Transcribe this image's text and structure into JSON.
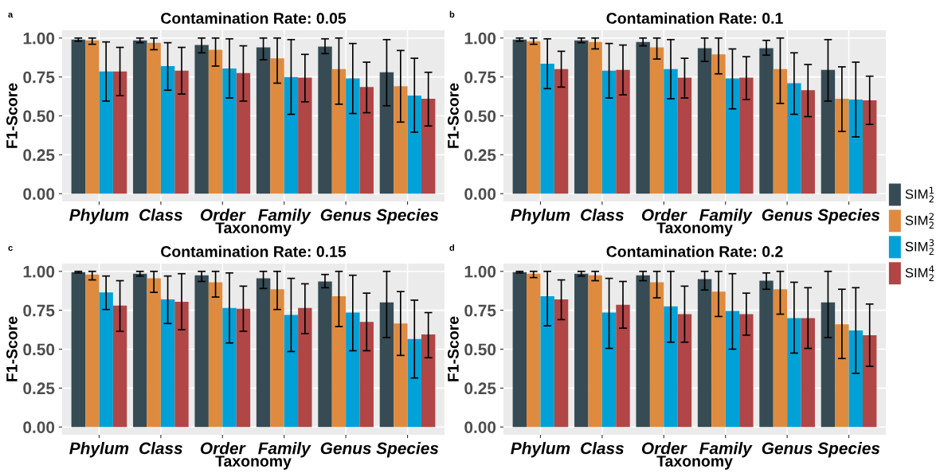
{
  "chart_data": [
    {
      "type": "bar",
      "title": "Contamination Rate: 0.05",
      "xlabel": "Taxonomy",
      "ylabel": "F1-Score",
      "annotations": [
        "a"
      ],
      "categories": [
        "Phylum",
        "Class",
        "Order",
        "Family",
        "Genus",
        "Species"
      ],
      "ylim": [
        -0.05,
        1.05
      ],
      "yticks": [
        {
          "value": 0,
          "label": "0.00"
        },
        {
          "value": 0.25,
          "label": "0.25"
        },
        {
          "value": 0.5,
          "label": "0.50"
        },
        {
          "value": 0.75,
          "label": "0.75"
        },
        {
          "value": 1,
          "label": "1.00"
        }
      ],
      "grid": true,
      "series": [
        {
          "color": "#364b54",
          "values": [
            0.99,
            0.985,
            0.955,
            0.94,
            0.945,
            0.78
          ],
          "errors": [
            [
              0.98,
              1.0
            ],
            [
              0.97,
              1.0
            ],
            [
              0.905,
              1.0
            ],
            [
              0.86,
              1.0
            ],
            [
              0.9,
              0.995
            ],
            [
              0.565,
              0.99
            ]
          ]
        },
        {
          "color": "#de8b40",
          "values": [
            0.985,
            0.97,
            0.925,
            0.87,
            0.8,
            0.69
          ],
          "errors": [
            [
              0.96,
              1.0
            ],
            [
              0.925,
              1.0
            ],
            [
              0.82,
              1.0
            ],
            [
              0.71,
              1.0
            ],
            [
              0.575,
              1.0
            ],
            [
              0.46,
              0.92
            ]
          ]
        },
        {
          "color": "#00a1d6",
          "values": [
            0.785,
            0.82,
            0.805,
            0.75,
            0.74,
            0.63
          ],
          "errors": [
            [
              0.595,
              0.975
            ],
            [
              0.665,
              0.97
            ],
            [
              0.615,
              0.995
            ],
            [
              0.51,
              0.99
            ],
            [
              0.515,
              0.965
            ],
            [
              0.395,
              0.87
            ]
          ]
        },
        {
          "color": "#b04646",
          "values": [
            0.785,
            0.79,
            0.775,
            0.745,
            0.685,
            0.61
          ],
          "errors": [
            [
              0.63,
              0.94
            ],
            [
              0.64,
              0.94
            ],
            [
              0.595,
              0.95
            ],
            [
              0.59,
              0.895
            ],
            [
              0.52,
              0.845
            ],
            [
              0.435,
              0.78
            ]
          ]
        }
      ]
    },
    {
      "type": "bar",
      "title": "Contamination Rate: 0.1",
      "xlabel": "Taxonomy",
      "ylabel": "F1-Score",
      "annotations": [
        "b"
      ],
      "legend": "right",
      "categories": [
        "Phylum",
        "Class",
        "Order",
        "Family",
        "Genus",
        "Species"
      ],
      "ylim": [
        -0.05,
        1.05
      ],
      "yticks": [
        {
          "value": 0,
          "label": "0.00"
        },
        {
          "value": 0.25,
          "label": "0.25"
        },
        {
          "value": 0.5,
          "label": "0.50"
        },
        {
          "value": 0.75,
          "label": "0.75"
        },
        {
          "value": 1,
          "label": "1.00"
        }
      ],
      "grid": true,
      "series": [
        {
          "name": "SIM$^{1}$$_{2}$",
          "color": "#364b54",
          "values": [
            0.99,
            0.985,
            0.975,
            0.935,
            0.935,
            0.795
          ],
          "errors": [
            [
              0.98,
              1.0
            ],
            [
              0.97,
              1.0
            ],
            [
              0.95,
              1.0
            ],
            [
              0.85,
              1.0
            ],
            [
              0.89,
              0.985
            ],
            [
              0.595,
              0.99
            ]
          ]
        },
        {
          "name": "SIM$^{2}$$_{2}$",
          "color": "#de8b40",
          "values": [
            0.98,
            0.975,
            0.94,
            0.895,
            0.8,
            0.61
          ],
          "errors": [
            [
              0.96,
              1.0
            ],
            [
              0.93,
              1.0
            ],
            [
              0.865,
              1.0
            ],
            [
              0.77,
              1.0
            ],
            [
              0.58,
              1.0
            ],
            [
              0.4,
              0.815
            ]
          ]
        },
        {
          "name": "SIM$^{3}$$_{2}$",
          "color": "#00a1d6",
          "values": [
            0.835,
            0.79,
            0.8,
            0.74,
            0.71,
            0.605
          ],
          "errors": [
            [
              0.675,
              0.995
            ],
            [
              0.615,
              0.965
            ],
            [
              0.61,
              0.99
            ],
            [
              0.545,
              0.93
            ],
            [
              0.51,
              0.905
            ],
            [
              0.365,
              0.845
            ]
          ]
        },
        {
          "name": "SIM$^{4}$$_{2}$",
          "color": "#b04646",
          "values": [
            0.8,
            0.795,
            0.745,
            0.745,
            0.665,
            0.6
          ],
          "errors": [
            [
              0.685,
              0.915
            ],
            [
              0.635,
              0.955
            ],
            [
              0.615,
              0.87
            ],
            [
              0.605,
              0.88
            ],
            [
              0.495,
              0.83
            ],
            [
              0.445,
              0.755
            ]
          ]
        }
      ]
    },
    {
      "type": "bar",
      "title": "Contamination Rate: 0.15",
      "xlabel": "Taxonomy",
      "ylabel": "F1-Score",
      "annotations": [
        "c"
      ],
      "categories": [
        "Phylum",
        "Class",
        "Order",
        "Family",
        "Genus",
        "Species"
      ],
      "ylim": [
        -0.05,
        1.05
      ],
      "yticks": [
        {
          "value": 0,
          "label": "0.00"
        },
        {
          "value": 0.25,
          "label": "0.25"
        },
        {
          "value": 0.5,
          "label": "0.50"
        },
        {
          "value": 0.75,
          "label": "0.75"
        },
        {
          "value": 1,
          "label": "1.00"
        }
      ],
      "grid": true,
      "series": [
        {
          "color": "#364b54",
          "values": [
            0.995,
            0.985,
            0.975,
            0.955,
            0.935,
            0.8
          ],
          "errors": [
            [
              0.99,
              1.0
            ],
            [
              0.97,
              1.0
            ],
            [
              0.935,
              1.0
            ],
            [
              0.89,
              1.0
            ],
            [
              0.895,
              0.98
            ],
            [
              0.575,
              1.0
            ]
          ]
        },
        {
          "color": "#de8b40",
          "values": [
            0.98,
            0.955,
            0.93,
            0.885,
            0.84,
            0.665
          ],
          "errors": [
            [
              0.945,
              1.0
            ],
            [
              0.865,
              1.0
            ],
            [
              0.835,
              1.0
            ],
            [
              0.755,
              1.0
            ],
            [
              0.645,
              1.0
            ],
            [
              0.46,
              0.87
            ]
          ]
        },
        {
          "color": "#00a1d6",
          "values": [
            0.865,
            0.82,
            0.765,
            0.72,
            0.735,
            0.565
          ],
          "errors": [
            [
              0.755,
              0.97
            ],
            [
              0.665,
              0.97
            ],
            [
              0.54,
              0.99
            ],
            [
              0.485,
              0.955
            ],
            [
              0.49,
              0.975
            ],
            [
              0.315,
              0.815
            ]
          ]
        },
        {
          "color": "#b04646",
          "values": [
            0.78,
            0.805,
            0.76,
            0.765,
            0.675,
            0.595
          ],
          "errors": [
            [
              0.615,
              0.94
            ],
            [
              0.625,
              0.985
            ],
            [
              0.615,
              0.905
            ],
            [
              0.6,
              0.92
            ],
            [
              0.49,
              0.86
            ],
            [
              0.445,
              0.735
            ]
          ]
        }
      ]
    },
    {
      "type": "bar",
      "title": "Contamination Rate: 0.2",
      "xlabel": "Taxonomy",
      "ylabel": "F1-Score",
      "annotations": [
        "d"
      ],
      "categories": [
        "Phylum",
        "Class",
        "Order",
        "Family",
        "Genus",
        "Species"
      ],
      "ylim": [
        -0.05,
        1.05
      ],
      "yticks": [
        {
          "value": 0,
          "label": "0.00"
        },
        {
          "value": 0.25,
          "label": "0.25"
        },
        {
          "value": 0.5,
          "label": "0.50"
        },
        {
          "value": 0.75,
          "label": "0.75"
        },
        {
          "value": 1,
          "label": "1.00"
        }
      ],
      "grid": true,
      "series": [
        {
          "color": "#364b54",
          "values": [
            0.995,
            0.985,
            0.975,
            0.95,
            0.94,
            0.8
          ],
          "errors": [
            [
              0.99,
              1.0
            ],
            [
              0.97,
              1.0
            ],
            [
              0.94,
              1.0
            ],
            [
              0.88,
              1.0
            ],
            [
              0.885,
              0.99
            ],
            [
              0.575,
              1.0
            ]
          ]
        },
        {
          "color": "#de8b40",
          "values": [
            0.985,
            0.975,
            0.93,
            0.87,
            0.885,
            0.66
          ],
          "errors": [
            [
              0.96,
              1.0
            ],
            [
              0.94,
              1.0
            ],
            [
              0.83,
              1.0
            ],
            [
              0.71,
              1.0
            ],
            [
              0.725,
              1.0
            ],
            [
              0.44,
              0.885
            ]
          ]
        },
        {
          "color": "#00a1d6",
          "values": [
            0.84,
            0.735,
            0.775,
            0.745,
            0.7,
            0.62
          ],
          "errors": [
            [
              0.65,
              1.0
            ],
            [
              0.505,
              0.955
            ],
            [
              0.545,
              1.0
            ],
            [
              0.5,
              0.985
            ],
            [
              0.475,
              0.93
            ],
            [
              0.345,
              0.895
            ]
          ]
        },
        {
          "color": "#b04646",
          "values": [
            0.82,
            0.785,
            0.725,
            0.725,
            0.7,
            0.59
          ],
          "errors": [
            [
              0.69,
              0.945
            ],
            [
              0.635,
              0.935
            ],
            [
              0.545,
              0.905
            ],
            [
              0.59,
              0.86
            ],
            [
              0.505,
              0.895
            ],
            [
              0.39,
              0.79
            ]
          ]
        }
      ]
    }
  ]
}
